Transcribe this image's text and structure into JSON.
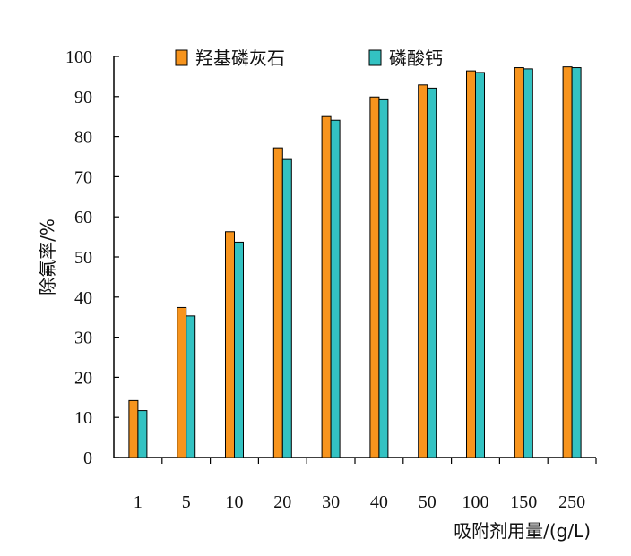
{
  "chart_data": {
    "type": "bar",
    "categories": [
      "1",
      "5",
      "10",
      "20",
      "30",
      "40",
      "50",
      "100",
      "150",
      "250"
    ],
    "series": [
      {
        "name": "羟基磷灰石",
        "color": "#F7941D",
        "values": [
          14.2,
          37.4,
          56.3,
          77.2,
          85.0,
          89.9,
          92.9,
          96.4,
          97.2,
          97.4
        ]
      },
      {
        "name": "磷酸钙",
        "color": "#33C2C2",
        "values": [
          11.7,
          35.3,
          53.7,
          74.3,
          84.1,
          89.2,
          92.1,
          96.0,
          96.9,
          97.2
        ]
      }
    ],
    "xlabel": "吸附剂用量/(g/L)",
    "ylabel": "除氟率/%",
    "ylim": [
      0,
      100
    ],
    "yticks": [
      0,
      10,
      20,
      30,
      40,
      50,
      60,
      70,
      80,
      90,
      100
    ],
    "grid": false,
    "legend_position": "top"
  }
}
